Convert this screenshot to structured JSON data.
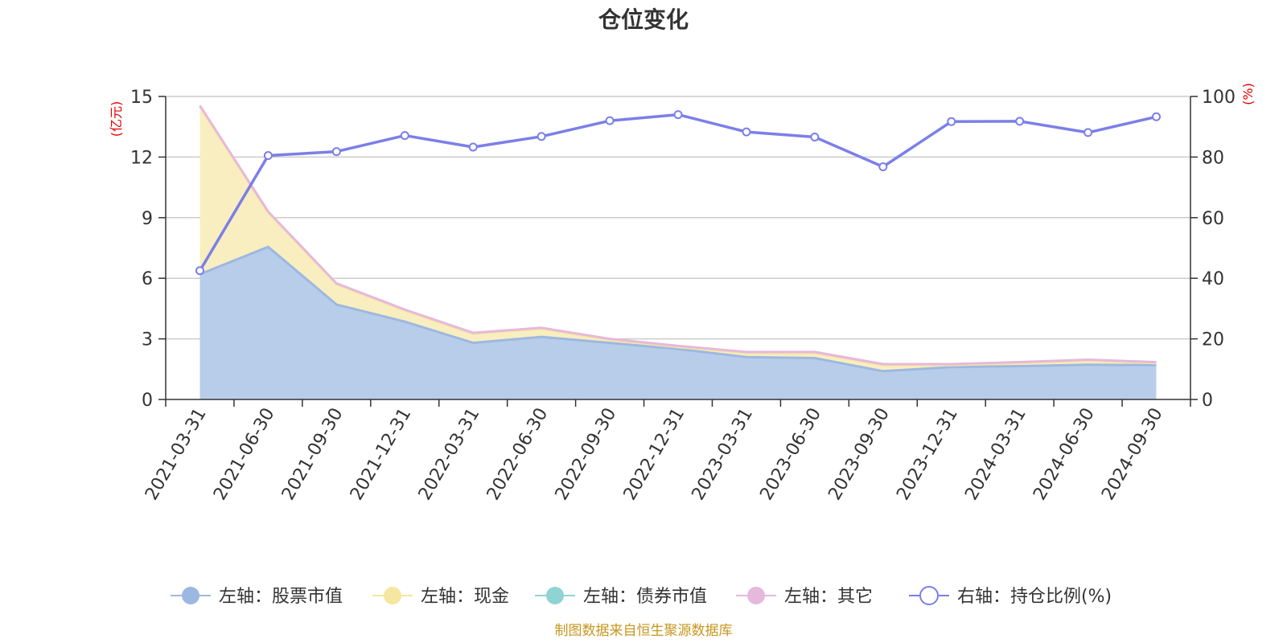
{
  "chart_data": {
    "type": "area",
    "title": "仓位变化",
    "y_left_unit": "(亿元)",
    "y_right_unit": "(%)",
    "y_left_range": [
      0,
      15
    ],
    "y_left_ticks": [
      0,
      3,
      6,
      9,
      12,
      15
    ],
    "y_right_range": [
      0,
      100
    ],
    "y_right_ticks": [
      0,
      20,
      40,
      60,
      80,
      100
    ],
    "categories": [
      "2021-03-31",
      "2021-06-30",
      "2021-09-30",
      "2021-12-31",
      "2022-03-31",
      "2022-06-30",
      "2022-09-30",
      "2022-12-31",
      "2023-03-31",
      "2023-06-30",
      "2023-09-30",
      "2023-12-31",
      "2024-03-31",
      "2024-06-30",
      "2024-09-30"
    ],
    "series": [
      {
        "name": "左轴：股票市值",
        "axis": "left",
        "stack": "total",
        "color": "#9db8e0",
        "fill": "#b8cdea",
        "values": [
          6.2,
          7.55,
          4.7,
          3.85,
          2.8,
          3.1,
          2.8,
          2.5,
          2.1,
          2.05,
          1.4,
          1.6,
          1.65,
          1.72,
          1.7
        ]
      },
      {
        "name": "左轴：现金",
        "axis": "left",
        "stack": "total",
        "color": "#f5e6a0",
        "fill": "#f9eebf",
        "values": [
          8.3,
          1.7,
          1.0,
          0.55,
          0.45,
          0.4,
          0.15,
          0.1,
          0.2,
          0.25,
          0.3,
          0.1,
          0.15,
          0.2,
          0.1
        ]
      },
      {
        "name": "左轴：债券市值",
        "axis": "left",
        "stack": "total",
        "color": "#8fd3d3",
        "fill": "#8fd3d3",
        "values": [
          0,
          0,
          0,
          0,
          0,
          0,
          0,
          0,
          0,
          0,
          0,
          0,
          0,
          0,
          0
        ]
      },
      {
        "name": "左轴：其它",
        "axis": "left",
        "stack": "total",
        "color": "#e6b8dc",
        "fill": "#e6b8dc",
        "values": [
          0.05,
          0.05,
          0.05,
          0.05,
          0.05,
          0.05,
          0.05,
          0.05,
          0.05,
          0.05,
          0.05,
          0.05,
          0.05,
          0.05,
          0.05
        ]
      },
      {
        "name": "右轴：持仓比例(%)",
        "axis": "right",
        "type": "line",
        "color": "#7b7fe8",
        "values": [
          42.5,
          80.5,
          81.8,
          87.1,
          83.3,
          86.8,
          92.0,
          94.0,
          88.3,
          86.6,
          76.8,
          91.7,
          91.8,
          88.1,
          93.3
        ]
      }
    ],
    "source_text": "制图数据来自恒生聚源数据库"
  }
}
